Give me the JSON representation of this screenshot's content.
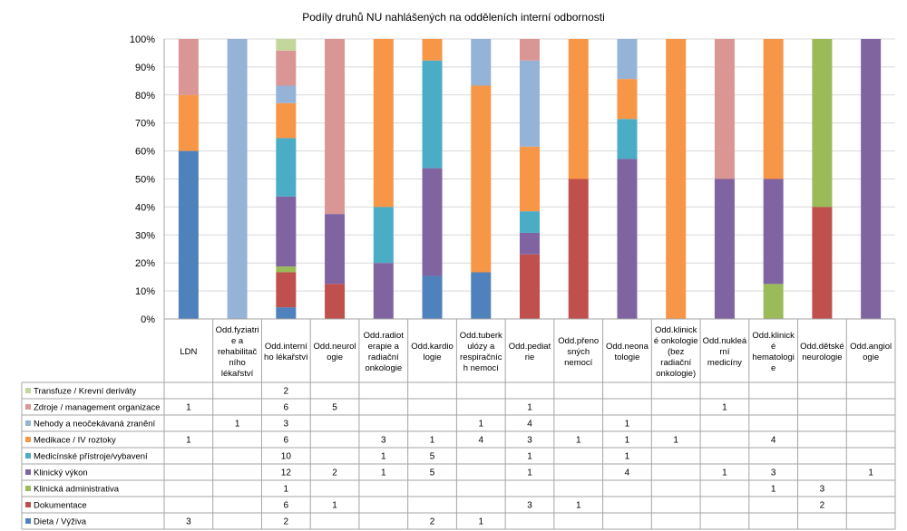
{
  "chart_data": {
    "type": "bar",
    "stacking": "percent",
    "title": "Podíly druhů NU nahlášených na odděleních interní odbornosti",
    "xlabel": "",
    "ylabel": "",
    "ylim": [
      0,
      100
    ],
    "yticks": [
      "0%",
      "10%",
      "20%",
      "30%",
      "40%",
      "50%",
      "60%",
      "70%",
      "80%",
      "90%",
      "100%"
    ],
    "grid": true,
    "legend": "bottom-left (data table)",
    "categories": [
      "LDN",
      "Odd.fyziatrie a rehabilitačního lékařství",
      "Odd.interního lékařství",
      "Odd.neurologie",
      "Odd.radioterapie a radiační onkologie",
      "Odd.kardiologie",
      "Odd.tuberkulózy a respiračních nemocí",
      "Odd.pediatrie",
      "Odd.přenosných nemocí",
      "Odd.neonatologie",
      "Odd.klinické onkologie (bez radiační onkologie)",
      "Odd.nukleární medicíny",
      "Odd.klinické hematologie",
      "Odd.dětské neurologie",
      "Odd.angiologie"
    ],
    "category_labels": [
      [
        "LDN"
      ],
      [
        "Odd.fyziatri",
        "e a",
        "rehabilitač",
        "ního",
        "lékařství"
      ],
      [
        "Odd.interní",
        "ho lékařství"
      ],
      [
        "Odd.neurol",
        "ogie"
      ],
      [
        "Odd.radiot",
        "erapie a",
        "radiační",
        "onkologie"
      ],
      [
        "Odd.kardio",
        "logie"
      ],
      [
        "Odd.tuberk",
        "ulózy a",
        "respiračníc",
        "h nemocí"
      ],
      [
        "Odd.pediat",
        "rie"
      ],
      [
        "Odd.přeno",
        "sných",
        "nemocí"
      ],
      [
        "Odd.neona",
        "tologie"
      ],
      [
        "Odd.klinick",
        "é onkologie",
        "(bez",
        "radiační",
        "onkologie)"
      ],
      [
        "Odd.nukleá",
        "rní",
        "medicíny"
      ],
      [
        "Odd.klinick",
        "é",
        "hematologi",
        "e"
      ],
      [
        "Odd.dětské",
        "neurologie"
      ],
      [
        "Odd.angiol",
        "ogie"
      ]
    ],
    "series": [
      {
        "name": "Dieta / Výživa",
        "color": "#4f81bd",
        "values": [
          3,
          null,
          2,
          null,
          null,
          2,
          1,
          null,
          null,
          null,
          null,
          null,
          null,
          null,
          null
        ]
      },
      {
        "name": "Dokumentace",
        "color": "#c0504d",
        "values": [
          null,
          null,
          6,
          1,
          null,
          null,
          null,
          3,
          1,
          null,
          null,
          null,
          null,
          2,
          null
        ]
      },
      {
        "name": "Klinická administrativa",
        "color": "#9bbb59",
        "values": [
          null,
          null,
          1,
          null,
          null,
          null,
          null,
          null,
          null,
          null,
          null,
          null,
          1,
          3,
          null
        ]
      },
      {
        "name": "Klinický výkon",
        "color": "#8064a2",
        "values": [
          null,
          null,
          12,
          2,
          1,
          5,
          null,
          1,
          null,
          4,
          null,
          1,
          3,
          null,
          1
        ]
      },
      {
        "name": "Medicínské přístroje/vybavení",
        "color": "#4bacc6",
        "values": [
          null,
          null,
          10,
          null,
          1,
          5,
          null,
          1,
          null,
          1,
          null,
          null,
          null,
          null,
          null
        ]
      },
      {
        "name": "Medikace / IV roztoky",
        "color": "#f79646",
        "values": [
          1,
          null,
          6,
          null,
          3,
          1,
          4,
          3,
          1,
          1,
          1,
          null,
          4,
          null,
          null
        ]
      },
      {
        "name": "Nehody a neočekávaná zranění",
        "color": "#95b3d7",
        "values": [
          null,
          1,
          3,
          null,
          null,
          null,
          1,
          4,
          null,
          1,
          null,
          null,
          null,
          null,
          null
        ]
      },
      {
        "name": "Zdroje / management organizace",
        "color": "#d99694",
        "values": [
          1,
          null,
          6,
          5,
          null,
          null,
          null,
          1,
          null,
          null,
          null,
          1,
          null,
          null,
          null
        ]
      },
      {
        "name": "Transfuze / Krevní deriváty",
        "color": "#c3d69b",
        "values": [
          null,
          null,
          2,
          null,
          null,
          null,
          null,
          null,
          null,
          null,
          null,
          null,
          null,
          null,
          null
        ]
      }
    ]
  }
}
